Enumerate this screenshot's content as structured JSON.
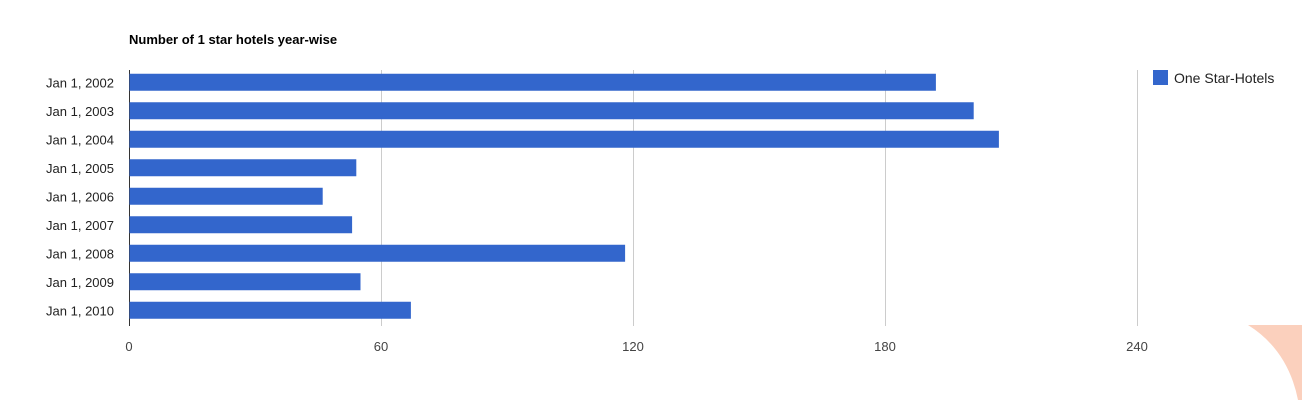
{
  "chart_data": {
    "type": "bar",
    "orientation": "horizontal",
    "title": "Number of 1 star hotels year-wise",
    "xlabel": "",
    "ylabel": "",
    "categories": [
      "Jan 1, 2002",
      "Jan 1, 2003",
      "Jan 1, 2004",
      "Jan 1, 2005",
      "Jan 1, 2006",
      "Jan 1, 2007",
      "Jan 1, 2008",
      "Jan 1, 2009",
      "Jan 1, 2010"
    ],
    "series": [
      {
        "name": "One Star-Hotels",
        "color": "#3366cc",
        "values": [
          192,
          201,
          207,
          54,
          46,
          53,
          118,
          55,
          67
        ]
      }
    ],
    "xlim": [
      0,
      240
    ],
    "xticks": [
      0,
      60,
      120,
      180,
      240
    ],
    "xtick_labels": [
      "0",
      "60",
      "120",
      "180",
      "240"
    ],
    "grid": true,
    "legend_position": "right"
  },
  "decoration": {
    "corner_shape_color": "#fbd0bd"
  }
}
